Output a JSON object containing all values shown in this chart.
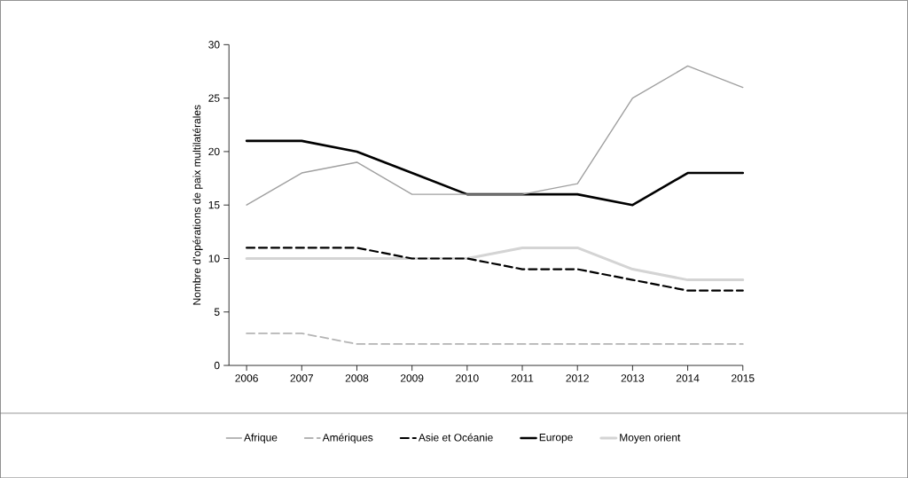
{
  "chart_data": {
    "type": "line",
    "ylabel": "Nombre d’opérations de paix multilatérales",
    "x": [
      2006,
      2007,
      2008,
      2009,
      2010,
      2011,
      2012,
      2013,
      2014,
      2015
    ],
    "xlim": [
      2005.68,
      2015
    ],
    "xticks": [
      2006,
      2007,
      2008,
      2009,
      2010,
      2011,
      2012,
      2013,
      2014,
      2015
    ],
    "ylim": [
      0,
      30
    ],
    "yticks": [
      0,
      5,
      10,
      15,
      20,
      25,
      30
    ],
    "grid": false,
    "legend": "bottom",
    "marker": "none",
    "series": [
      {
        "name": "Afrique",
        "color": "#a0a0a0",
        "line_style": "solid",
        "values": [
          15,
          18,
          19,
          16,
          16,
          16,
          17,
          25,
          28,
          26
        ]
      },
      {
        "name": "Amériques",
        "color": "#b4b4b4",
        "line_style": "dashed",
        "values": [
          3,
          3,
          2,
          2,
          2,
          2,
          2,
          2,
          2,
          2
        ]
      },
      {
        "name": "Asie et Océanie",
        "color": "#000000",
        "line_style": "dashed",
        "values": [
          11,
          11,
          11,
          10,
          10,
          9,
          9,
          8,
          7,
          7
        ]
      },
      {
        "name": "Europe",
        "color": "#000000",
        "line_style": "solid",
        "values": [
          21,
          21,
          20,
          18,
          16,
          16,
          16,
          15,
          18,
          18
        ]
      },
      {
        "name": "Moyen orient",
        "color": "#d4d4d4",
        "line_style": "solid",
        "values": [
          10,
          10,
          10,
          10,
          10,
          11,
          11,
          9,
          8,
          8
        ]
      }
    ]
  }
}
